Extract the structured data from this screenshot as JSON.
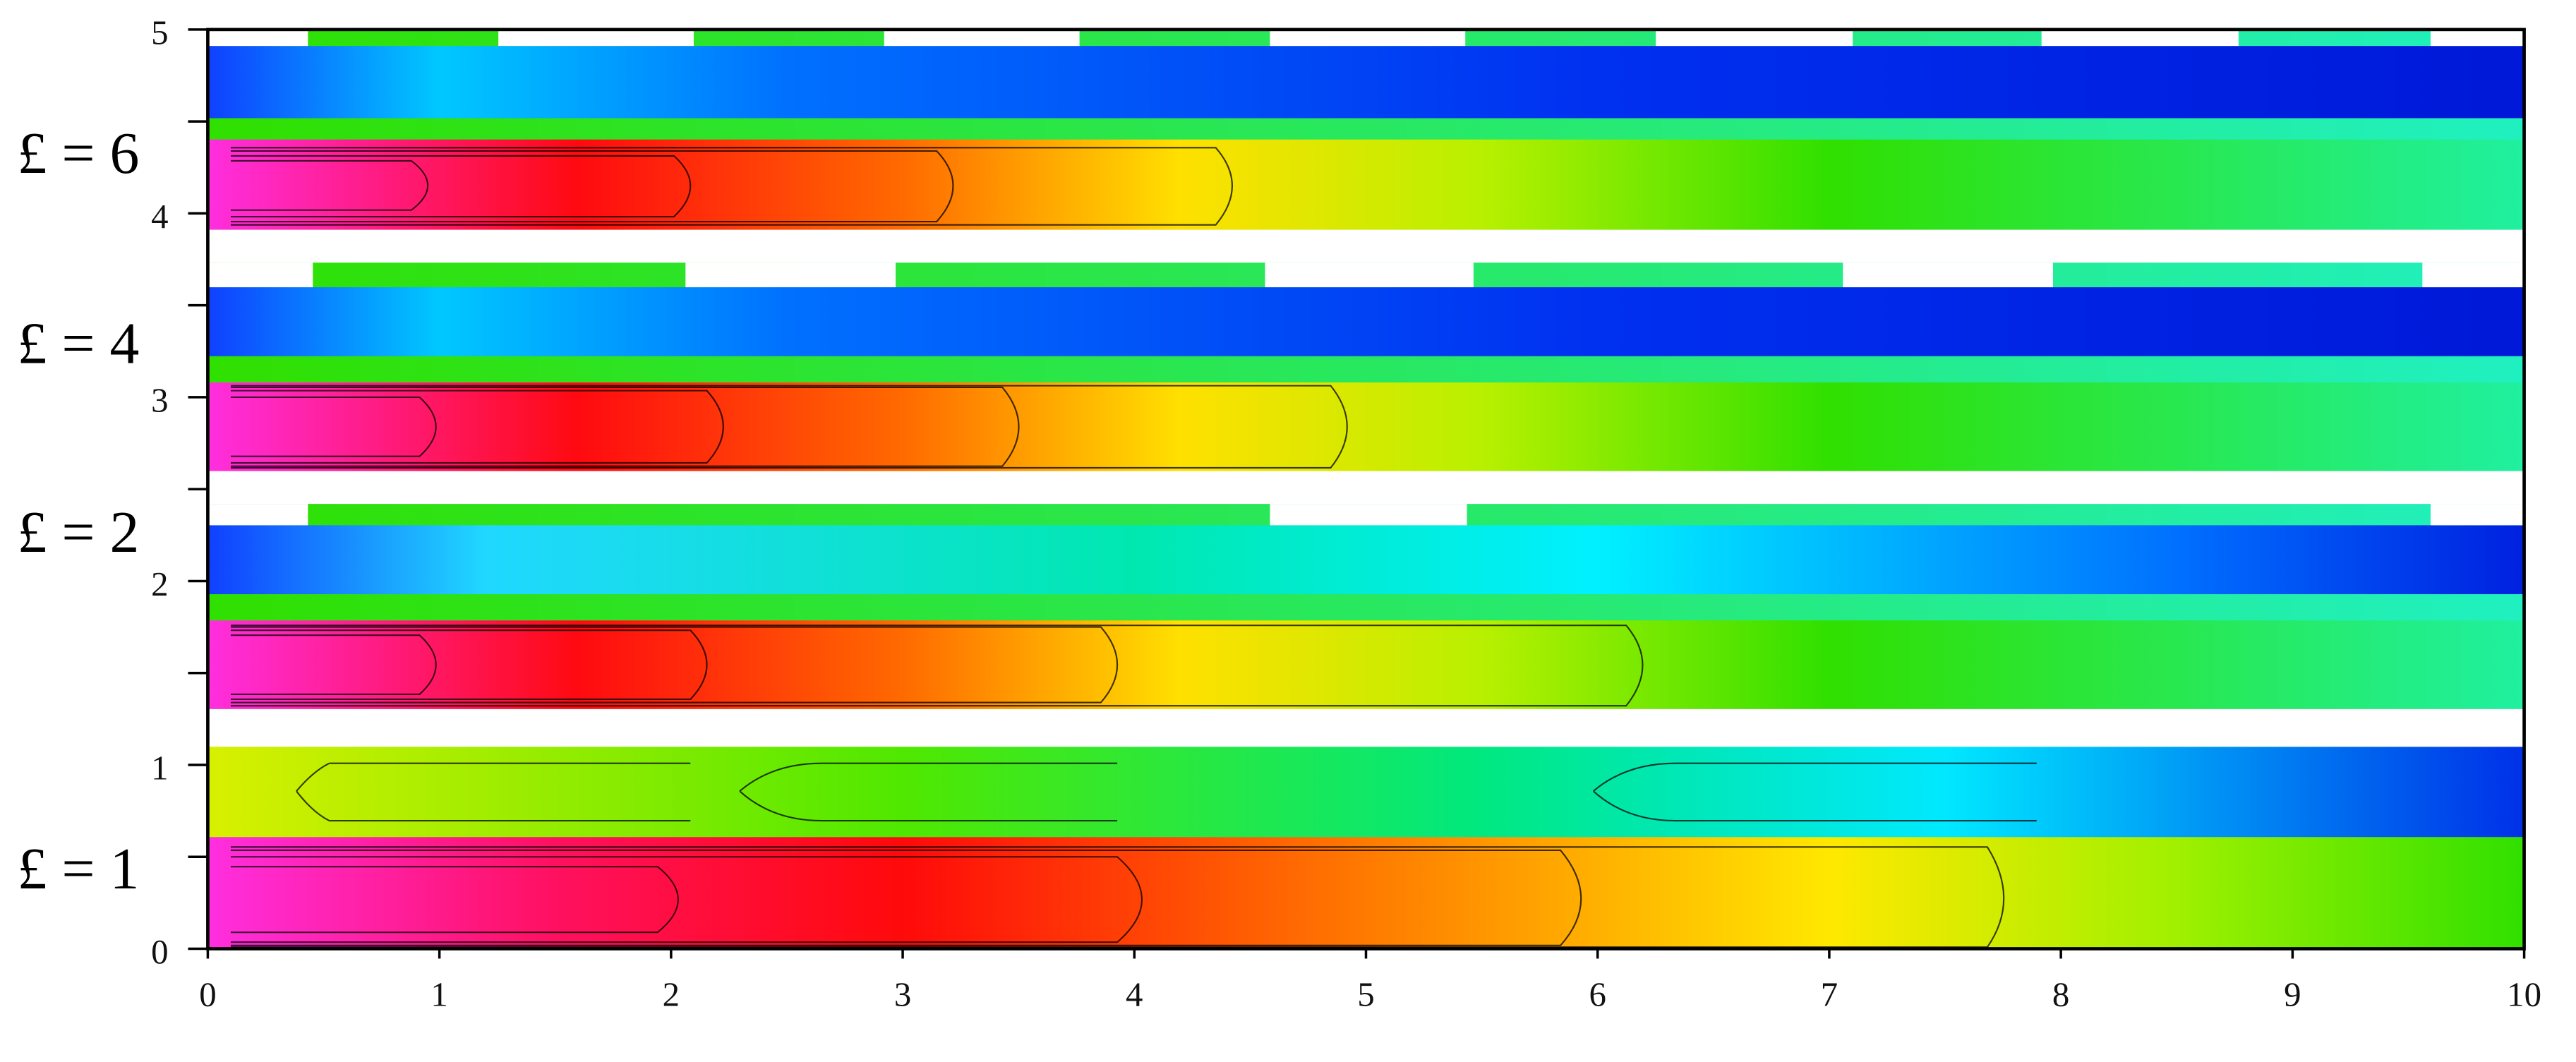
{
  "chart_data": {
    "type": "contour",
    "panel_labels": [
      "£ = 6",
      "£ = 4",
      "£ = 2",
      "£ = 1"
    ],
    "xlim": [
      0,
      10
    ],
    "xticks": [
      0,
      1,
      2,
      3,
      4,
      5,
      6,
      7,
      8,
      9,
      10
    ],
    "ylim": [
      0,
      5
    ],
    "yticks": [
      0,
      1,
      2,
      3,
      4,
      5
    ],
    "yminor": [
      0.5,
      1.5,
      2.5,
      3.5,
      4.5
    ]
  }
}
